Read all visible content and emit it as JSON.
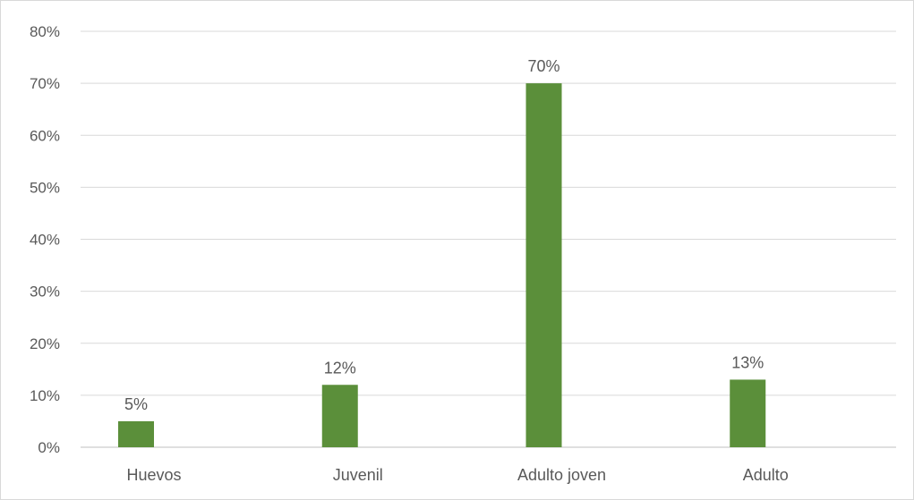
{
  "chart_data": {
    "type": "bar",
    "title": "",
    "xlabel": "",
    "ylabel": "",
    "categories": [
      "Huevos",
      "Juvenil",
      "Adulto joven",
      "Adulto"
    ],
    "values": [
      5,
      12,
      70,
      13
    ],
    "value_labels": [
      "5%",
      "12%",
      "70%",
      "13%"
    ],
    "ylim": [
      0,
      80
    ],
    "yticks": [
      0,
      10,
      20,
      30,
      40,
      50,
      60,
      70,
      80
    ],
    "ytick_labels": [
      "0%",
      "10%",
      "20%",
      "30%",
      "40%",
      "50%",
      "60%",
      "70%",
      "80%"
    ],
    "grid": true,
    "legend": "none",
    "bar_color": "#5b8f3a"
  }
}
